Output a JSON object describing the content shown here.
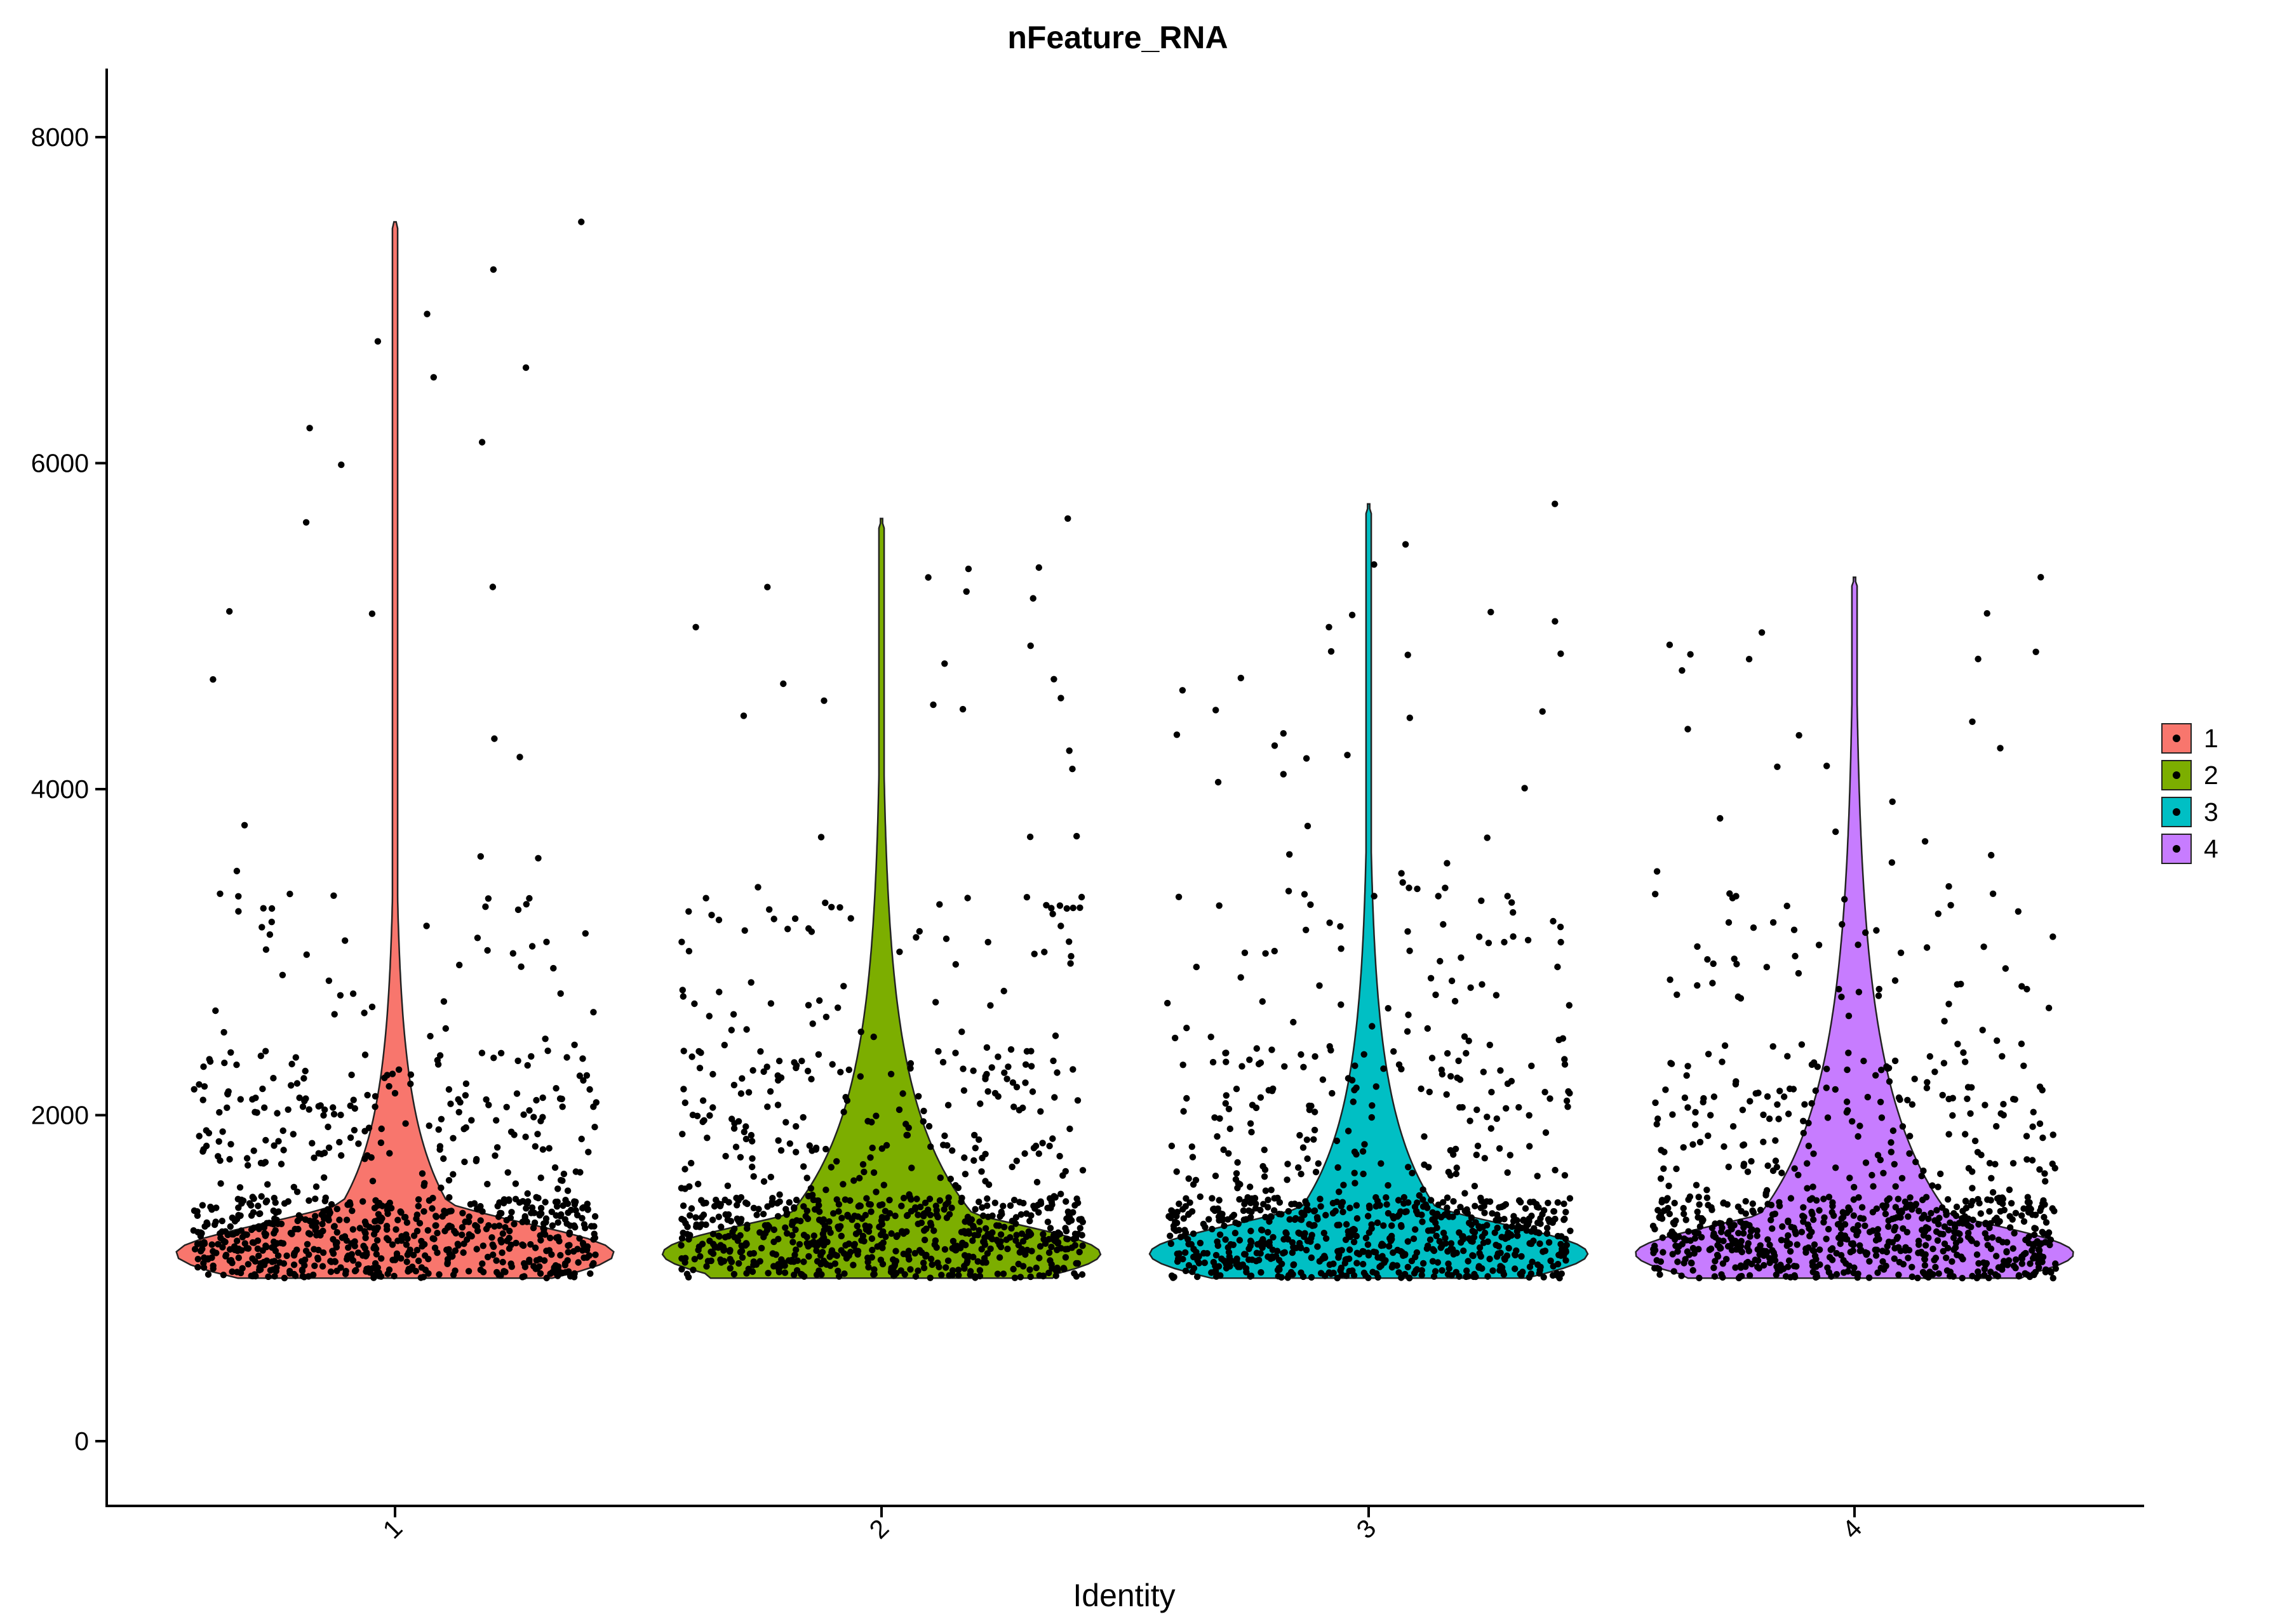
{
  "chart_data": {
    "type": "violin",
    "title": "nFeature_RNA",
    "xlabel": "Identity",
    "ylabel": "",
    "ylim": [
      -400,
      8400
    ],
    "yticks": [
      0,
      2000,
      4000,
      6000,
      8000
    ],
    "categories": [
      "1",
      "2",
      "3",
      "4"
    ],
    "colors": [
      "#F8766D",
      "#7CAE00",
      "#00BFC4",
      "#C77CFF"
    ],
    "legend": {
      "placement": "right",
      "entries": [
        "1",
        "2",
        "3",
        "4"
      ]
    },
    "grid": false,
    "series": [
      {
        "name": "1",
        "min": 1000,
        "max": 7480,
        "median": 1300
      },
      {
        "name": "2",
        "min": 1000,
        "max": 5660,
        "median": 1350
      },
      {
        "name": "3",
        "min": 1000,
        "max": 5750,
        "median": 1320
      },
      {
        "name": "4",
        "min": 1000,
        "max": 5300,
        "median": 1320
      }
    ]
  }
}
